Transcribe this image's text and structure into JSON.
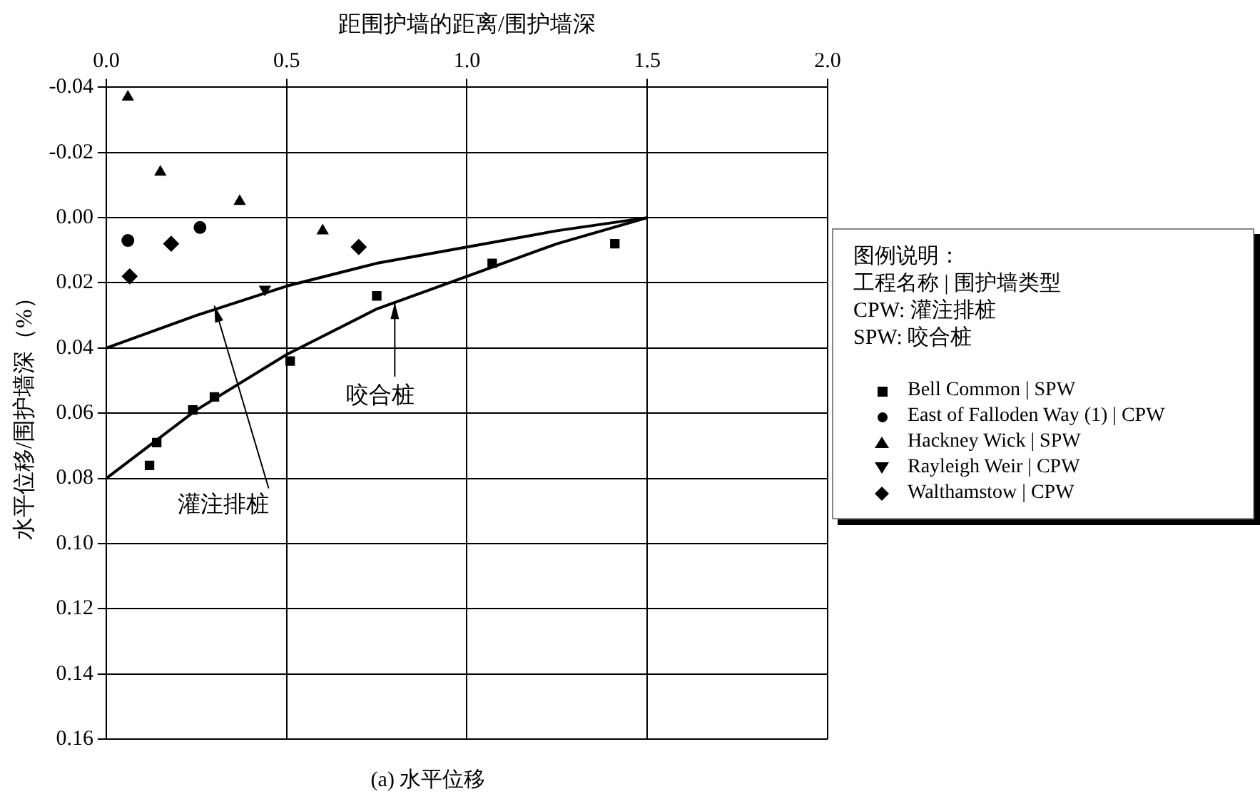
{
  "chart_data": {
    "type": "scatter",
    "xlabel": "距围护墙的距离/围护墙深",
    "ylabel": "水平位移/围护墙深（%）",
    "legend_title": "图例说明：",
    "legend": "right",
    "grid": true,
    "xlim": [
      0,
      2
    ],
    "xticks": [
      {
        "value": 0,
        "label": "0.0"
      },
      0.5,
      {
        "value": 1,
        "label": "1.0"
      },
      1.5,
      {
        "value": 2,
        "label": "2.0"
      }
    ],
    "ylim": [
      0.16,
      -0.04
    ],
    "yticks": [
      -0.04,
      -0.02,
      {
        "value": 0,
        "label": "0.00"
      },
      0.02,
      0.04,
      0.06,
      0.08,
      {
        "value": 0.1,
        "label": "0.10"
      },
      0.12,
      0.14,
      0.16
    ],
    "series": [
      {
        "name": "Bell Common | SPW",
        "type": "scatter",
        "marker": "square",
        "color": "#000000",
        "x": [
          0.12,
          0.14,
          0.24,
          0.3,
          0.51,
          0.75,
          1.07,
          1.41
        ],
        "values": [
          0.076,
          0.069,
          0.059,
          0.055,
          0.044,
          0.024,
          0.014,
          0.008
        ]
      },
      {
        "name": "East of Falloden Way (1) | CPW",
        "type": "scatter",
        "marker": "circle",
        "color": "#000000",
        "x": [
          0.06,
          0.26
        ],
        "values": [
          0.007,
          0.003
        ]
      },
      {
        "name": "Hackney Wick | SPW",
        "type": "scatter",
        "marker": "triangle",
        "color": "#000000",
        "x": [
          0.06,
          0.15,
          0.37,
          0.6
        ],
        "values": [
          -0.037,
          -0.014,
          -0.005,
          0.004
        ]
      },
      {
        "name": "Rayleigh Weir | CPW",
        "type": "scatter",
        "marker": "triangle-down",
        "color": "#000000",
        "x": [
          0.44
        ],
        "values": [
          0.022
        ]
      },
      {
        "name": "Walthamstow | CPW",
        "type": "scatter",
        "marker": "diamond",
        "color": "#000000",
        "x": [
          0.065,
          0.18,
          0.7
        ],
        "values": [
          0.018,
          0.008,
          0.009
        ]
      },
      {
        "type": "line",
        "marker": "none",
        "line_style": "solid",
        "color": "#000000",
        "x": [
          0,
          0.25,
          0.5,
          0.75,
          1,
          1.25,
          1.5
        ],
        "values": [
          0.04,
          0.03,
          0.021,
          0.014,
          0.009,
          0.004,
          0
        ]
      },
      {
        "type": "line",
        "marker": "none",
        "line_style": "solid",
        "color": "#000000",
        "x": [
          0,
          0.25,
          0.5,
          0.75,
          1,
          1.25,
          1.5
        ],
        "values": [
          0.08,
          0.059,
          0.042,
          0.028,
          0.018,
          0.008,
          0
        ]
      }
    ],
    "annotations": [
      {
        "text": "咬合桩",
        "x": 0.8,
        "y": 0.026
      },
      {
        "text": "灌注排桩",
        "x": 0.3,
        "y": 0.027
      },
      "工程名称 | 围护墙类型",
      "CPW: 灌注排桩",
      "SPW: 咬合桩",
      "(a) 水平位移"
    ]
  }
}
